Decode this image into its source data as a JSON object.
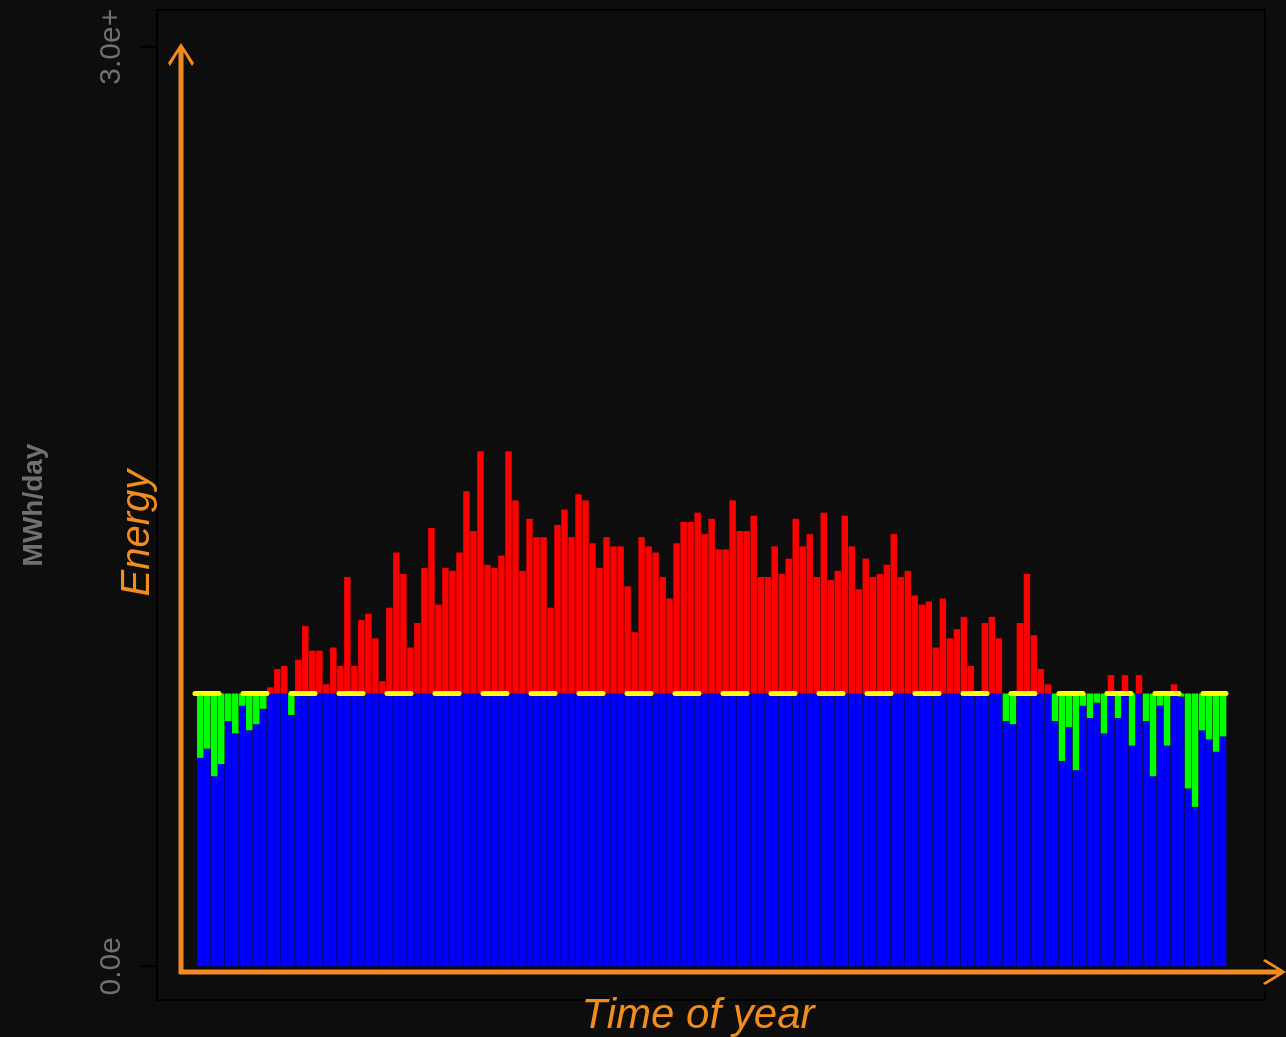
{
  "chart_data": {
    "type": "bar",
    "xlabel": "Time of year",
    "ylabel": "MWh/day",
    "annotations": [
      "Energy"
    ],
    "categories": [
      null,
      null,
      null,
      null,
      null,
      null,
      null,
      null,
      null,
      null,
      null,
      null,
      null,
      null,
      null,
      null,
      null,
      null,
      null,
      null,
      null,
      null,
      null,
      null,
      null,
      null,
      null,
      null,
      null,
      null,
      null,
      null,
      null,
      null,
      null,
      null,
      null,
      null,
      null,
      null,
      null,
      null,
      null,
      null,
      null,
      null,
      null,
      null,
      null,
      null,
      null,
      null,
      null,
      null,
      null,
      null,
      null,
      null,
      null,
      null,
      null,
      null,
      null,
      null,
      null,
      null,
      null,
      null,
      null,
      null,
      null,
      null,
      null,
      null,
      null,
      null,
      null,
      null,
      null,
      null,
      null,
      null,
      null,
      null,
      null,
      null,
      null,
      null,
      null,
      null,
      null,
      null,
      null,
      null,
      null,
      null,
      null,
      null,
      null,
      null,
      null,
      null,
      null,
      null,
      null,
      null,
      null,
      null,
      null,
      null,
      null,
      null,
      null,
      null,
      null,
      null,
      null,
      null,
      null,
      null,
      null,
      null,
      null,
      null,
      null,
      null,
      null,
      null,
      null,
      null,
      null,
      null,
      null,
      null,
      null,
      null,
      null,
      null,
      null,
      null,
      null,
      null,
      null,
      null,
      null,
      null,
      null
    ],
    "stacked": true,
    "series": [
      {
        "color": "#0000ff",
        "values": [
          0.68,
          0.71,
          0.62,
          0.66,
          0.8,
          0.76,
          0.85,
          0.77,
          0.79,
          0.84,
          0.89,
          0.89,
          0.89,
          0.82,
          0.89,
          0.89,
          0.89,
          0.89,
          0.89,
          0.89,
          0.89,
          0.89,
          0.89,
          0.89,
          0.89,
          0.89,
          0.89,
          0.89,
          0.89,
          0.89,
          0.89,
          0.89,
          0.89,
          0.89,
          0.89,
          0.89,
          0.89,
          0.89,
          0.89,
          0.89,
          0.89,
          0.89,
          0.89,
          0.89,
          0.89,
          0.89,
          0.89,
          0.89,
          0.89,
          0.89,
          0.89,
          0.89,
          0.89,
          0.89,
          0.89,
          0.89,
          0.89,
          0.89,
          0.89,
          0.89,
          0.89,
          0.89,
          0.89,
          0.89,
          0.89,
          0.89,
          0.89,
          0.89,
          0.89,
          0.89,
          0.89,
          0.89,
          0.89,
          0.89,
          0.89,
          0.89,
          0.89,
          0.89,
          0.89,
          0.89,
          0.89,
          0.89,
          0.89,
          0.89,
          0.89,
          0.89,
          0.89,
          0.89,
          0.89,
          0.89,
          0.89,
          0.89,
          0.89,
          0.89,
          0.89,
          0.89,
          0.89,
          0.89,
          0.89,
          0.89,
          0.89,
          0.89,
          0.89,
          0.89,
          0.89,
          0.89,
          0.89,
          0.89,
          0.89,
          0.89,
          0.89,
          0.89,
          0.89,
          0.89,
          0.89,
          0.8,
          0.79,
          0.89,
          0.89,
          0.89,
          0.89,
          0.89,
          0.8,
          0.67,
          0.78,
          0.64,
          0.85,
          0.81,
          0.86,
          0.76,
          0.89,
          0.81,
          0.89,
          0.72,
          0.89,
          0.8,
          0.62,
          0.85,
          0.72,
          0.89,
          0.88,
          0.58,
          0.52,
          0.77,
          0.74,
          0.7,
          0.75
        ]
      },
      {
        "color": "#00ff00",
        "values": [
          0.21,
          0.18,
          0.27,
          0.23,
          0.09,
          0.13,
          0.04,
          0.12,
          0.1,
          0.05,
          0,
          0,
          0,
          0.07,
          0,
          0,
          0,
          0,
          0,
          0,
          0,
          0,
          0,
          0,
          0,
          0,
          0,
          0,
          0,
          0,
          0,
          0,
          0,
          0,
          0,
          0,
          0,
          0,
          0,
          0,
          0,
          0,
          0,
          0,
          0,
          0,
          0,
          0,
          0,
          0,
          0,
          0,
          0,
          0,
          0,
          0,
          0,
          0,
          0,
          0,
          0,
          0,
          0,
          0,
          0,
          0,
          0,
          0,
          0,
          0,
          0,
          0,
          0,
          0,
          0,
          0,
          0,
          0,
          0,
          0,
          0,
          0,
          0,
          0,
          0,
          0,
          0,
          0,
          0,
          0,
          0,
          0,
          0,
          0,
          0,
          0,
          0,
          0,
          0,
          0,
          0,
          0,
          0,
          0,
          0,
          0,
          0,
          0,
          0,
          0,
          0,
          0,
          0,
          0,
          0,
          0.09,
          0.1,
          0,
          0,
          0,
          0,
          0,
          0.09,
          0.22,
          0.11,
          0.25,
          0.04,
          0.08,
          0.03,
          0.13,
          0,
          0.08,
          0,
          0.17,
          0,
          0.09,
          0.27,
          0.04,
          0.17,
          0,
          0.01,
          0.31,
          0.37,
          0.12,
          0.15,
          0.19,
          0.14
        ]
      },
      {
        "color": "#ff0000",
        "values": [
          0,
          0,
          0,
          0,
          0,
          0,
          0,
          0,
          0,
          0,
          0.02,
          0.08,
          0.09,
          0,
          0.11,
          0.22,
          0.14,
          0.14,
          0.03,
          0.15,
          0.09,
          0.38,
          0.09,
          0.24,
          0.26,
          0.18,
          0.04,
          0.28,
          0.46,
          0.39,
          0.15,
          0.23,
          0.41,
          0.54,
          0.29,
          0.41,
          0.4,
          0.46,
          0.66,
          0.53,
          0.79,
          0.42,
          0.41,
          0.45,
          0.79,
          0.63,
          0.4,
          0.57,
          0.51,
          0.51,
          0.28,
          0.55,
          0.6,
          0.51,
          0.65,
          0.63,
          0.49,
          0.41,
          0.51,
          0.48,
          0.48,
          0.35,
          0.2,
          0.51,
          0.48,
          0.46,
          0.38,
          0.31,
          0.49,
          0.56,
          0.56,
          0.59,
          0.52,
          0.57,
          0.47,
          0.47,
          0.63,
          0.53,
          0.53,
          0.58,
          0.38,
          0.38,
          0.48,
          0.39,
          0.44,
          0.57,
          0.48,
          0.52,
          0.38,
          0.59,
          0.37,
          0.4,
          0.58,
          0.48,
          0.34,
          0.44,
          0.38,
          0.39,
          0.42,
          0.52,
          0.38,
          0.4,
          0.32,
          0.29,
          0.3,
          0.15,
          0.31,
          0.18,
          0.21,
          0.25,
          0.09,
          null,
          0.23,
          0.25,
          0.18,
          0,
          0,
          0.23,
          0.39,
          0.19,
          0.08,
          0.03,
          0,
          0,
          0,
          0,
          0,
          0,
          0,
          0,
          0.06,
          0,
          0.06,
          0,
          0.06,
          0,
          0,
          0,
          0,
          0.03,
          0,
          0,
          0,
          0,
          0,
          0,
          0
        ]
      }
    ],
    "ylim": [
      -0.11,
      3.12
    ],
    "yticks": [
      {
        "value": 0,
        "label": "0.0e"
      },
      {
        "value": 3,
        "label": "3.0e+"
      }
    ],
    "ref_lines": [
      {
        "axis": "y",
        "value": 0.89,
        "color": "#ffff00",
        "line_style": "dashed"
      }
    ]
  }
}
